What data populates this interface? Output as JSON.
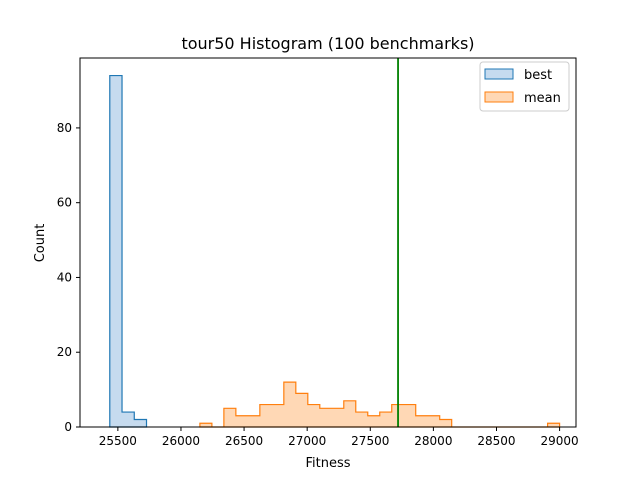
{
  "chart_data": {
    "type": "histogram",
    "title": "tour50 Histogram (100 benchmarks)",
    "xlabel": "Fitness",
    "ylabel": "Count",
    "xlim": [
      25200,
      29130
    ],
    "ylim": [
      0,
      98.7
    ],
    "xticks": [
      25500,
      26000,
      26500,
      27000,
      27500,
      28000,
      28500,
      29000
    ],
    "yticks": [
      0,
      20,
      40,
      60,
      80
    ],
    "grid": false,
    "legend_position": "top-right",
    "series": [
      {
        "name": "best",
        "color": "#1f77b4",
        "fill": "#c6dbef",
        "bins": [
          {
            "x0": 25436,
            "x1": 25533,
            "count": 94
          },
          {
            "x0": 25533,
            "x1": 25630,
            "count": 4
          },
          {
            "x0": 25630,
            "x1": 25727,
            "count": 2
          }
        ]
      },
      {
        "name": "mean",
        "color": "#ff7f0e",
        "fill": "#ffd8b5",
        "bins": [
          {
            "x0": 26150,
            "x1": 26245,
            "count": 1
          },
          {
            "x0": 26245,
            "x1": 26340,
            "count": 0
          },
          {
            "x0": 26340,
            "x1": 26435,
            "count": 5
          },
          {
            "x0": 26435,
            "x1": 26530,
            "count": 3
          },
          {
            "x0": 26530,
            "x1": 26625,
            "count": 3
          },
          {
            "x0": 26625,
            "x1": 26720,
            "count": 6
          },
          {
            "x0": 26720,
            "x1": 26815,
            "count": 6
          },
          {
            "x0": 26815,
            "x1": 26910,
            "count": 12
          },
          {
            "x0": 26910,
            "x1": 27005,
            "count": 9
          },
          {
            "x0": 27005,
            "x1": 27100,
            "count": 6
          },
          {
            "x0": 27100,
            "x1": 27195,
            "count": 5
          },
          {
            "x0": 27195,
            "x1": 27290,
            "count": 5
          },
          {
            "x0": 27290,
            "x1": 27385,
            "count": 7
          },
          {
            "x0": 27385,
            "x1": 27480,
            "count": 4
          },
          {
            "x0": 27480,
            "x1": 27575,
            "count": 3
          },
          {
            "x0": 27575,
            "x1": 27670,
            "count": 4
          },
          {
            "x0": 27670,
            "x1": 27765,
            "count": 6
          },
          {
            "x0": 27765,
            "x1": 27860,
            "count": 6
          },
          {
            "x0": 27860,
            "x1": 27955,
            "count": 3
          },
          {
            "x0": 27955,
            "x1": 28050,
            "count": 3
          },
          {
            "x0": 28050,
            "x1": 28145,
            "count": 2
          },
          {
            "x0": 28145,
            "x1": 28240,
            "count": 0
          },
          {
            "x0": 28240,
            "x1": 28335,
            "count": 0
          },
          {
            "x0": 28335,
            "x1": 28430,
            "count": 0
          },
          {
            "x0": 28430,
            "x1": 28525,
            "count": 0
          },
          {
            "x0": 28525,
            "x1": 28620,
            "count": 0
          },
          {
            "x0": 28620,
            "x1": 28715,
            "count": 0
          },
          {
            "x0": 28715,
            "x1": 28810,
            "count": 0
          },
          {
            "x0": 28810,
            "x1": 28905,
            "count": 0
          },
          {
            "x0": 28905,
            "x1": 29000,
            "count": 1
          }
        ]
      }
    ],
    "vline": {
      "x": 27720,
      "color": "#008000"
    }
  }
}
